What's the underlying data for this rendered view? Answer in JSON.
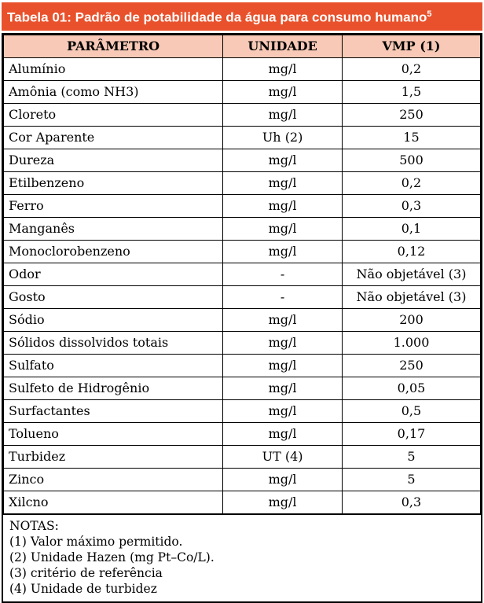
{
  "title": {
    "text": "Tabela 01: Padrão de potabilidade da água para consumo humano",
    "superscript": "5"
  },
  "table": {
    "headers": [
      "PARÂMETRO",
      "UNIDADE",
      "VMP (1)"
    ],
    "rows": [
      [
        "Alumínio",
        "mg/l",
        "0,2"
      ],
      [
        "Amônia (como NH3)",
        "mg/l",
        "1,5"
      ],
      [
        "Cloreto",
        "mg/l",
        "250"
      ],
      [
        "Cor Aparente",
        "Uh (2)",
        "15"
      ],
      [
        "Dureza",
        "mg/l",
        "500"
      ],
      [
        "Etilbenzeno",
        "mg/l",
        "0,2"
      ],
      [
        "Ferro",
        "mg/l",
        "0,3"
      ],
      [
        "Manganês",
        "mg/l",
        "0,1"
      ],
      [
        "Monoclorobenzeno",
        "mg/l",
        "0,12"
      ],
      [
        "Odor",
        "-",
        "Não objetável (3)"
      ],
      [
        "Gosto",
        "-",
        "Não objetável (3)"
      ],
      [
        "Sódio",
        "mg/l",
        "200"
      ],
      [
        "Sólidos dissolvidos totais",
        "mg/l",
        "1.000"
      ],
      [
        "Sulfato",
        "mg/l",
        "250"
      ],
      [
        "Sulfeto de Hidrogênio",
        "mg/l",
        "0,05"
      ],
      [
        "Surfactantes",
        "mg/l",
        "0,5"
      ],
      [
        "Tolueno",
        "mg/l",
        "0,17"
      ],
      [
        "Turbidez",
        "UT (4)",
        "5"
      ],
      [
        "Zinco",
        "mg/l",
        "5"
      ],
      [
        "Xilcno",
        "mg/l",
        "0,3"
      ]
    ]
  },
  "notes": {
    "label": "NOTAS:",
    "items": [
      "(1) Valor máximo permitido.",
      "(2) Unidade Hazen (mg Pt–Co/L).",
      "(3) critério de referência",
      "(4) Unidade de turbidez"
    ]
  },
  "colors": {
    "accent_orange": "#e8512b",
    "header_row_bg": "#f7c9b6",
    "border": "#000000",
    "text": "#000000",
    "title_text": "#ffffff"
  }
}
